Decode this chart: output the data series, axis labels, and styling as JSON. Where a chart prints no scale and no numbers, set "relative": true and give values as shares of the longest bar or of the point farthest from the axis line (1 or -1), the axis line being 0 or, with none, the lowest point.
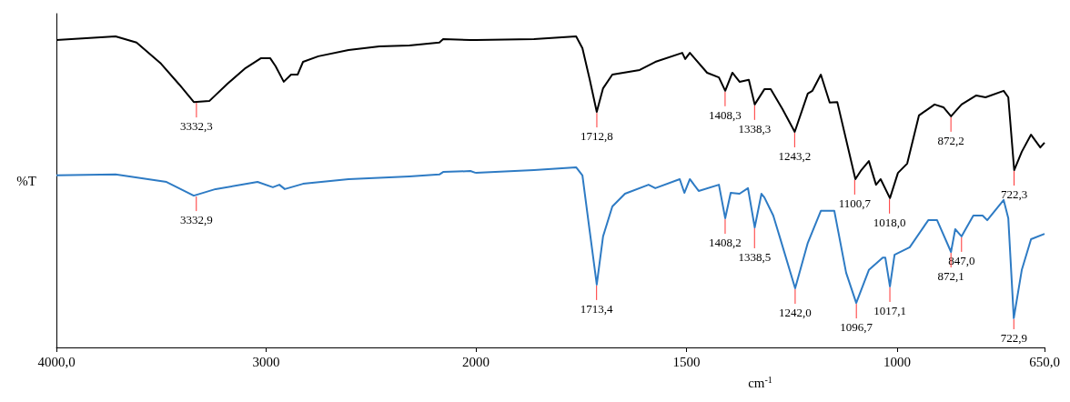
{
  "chart_data": [
    {
      "type": "line",
      "relative": true,
      "ylabel": "%T",
      "xlim": [
        4000,
        2000
      ],
      "xticks": [
        {
          "value": 4000,
          "label": "4000,0"
        },
        3000,
        2000
      ],
      "series": [
        {
          "color": "#000000",
          "x": [
            4000,
            3718,
            3618,
            3501,
            3414,
            3345,
            3271,
            3184,
            3098,
            3024,
            2981,
            2955,
            2916,
            2881,
            2850,
            2824,
            2751,
            2607,
            2460,
            2317,
            2174,
            2156,
            2026,
            2000
          ],
          "values": [
            0.988,
            1.0,
            0.98,
            0.912,
            0.845,
            0.789,
            0.792,
            0.848,
            0.898,
            0.93,
            0.93,
            0.904,
            0.854,
            0.877,
            0.877,
            0.918,
            0.936,
            0.956,
            0.968,
            0.971,
            0.98,
            0.991,
            0.988,
            0.988
          ]
        },
        {
          "color": "#2e7bc4",
          "x": [
            4000,
            3718,
            3475,
            3345,
            3241,
            3041,
            2968,
            2937,
            2911,
            2824,
            2607,
            2317,
            2174,
            2156,
            2026,
            2000
          ],
          "values": [
            0.553,
            0.556,
            0.532,
            0.488,
            0.509,
            0.532,
            0.515,
            0.523,
            0.509,
            0.526,
            0.541,
            0.55,
            0.556,
            0.564,
            0.567,
            0.561
          ]
        }
      ],
      "annotations": [
        {
          "text": "3332,3",
          "x": 3332.3,
          "y": 0.789
        },
        {
          "text": "3332,9",
          "x": 3332.9,
          "y": 0.488
        }
      ]
    },
    {
      "type": "line",
      "relative": true,
      "xlabel": "cm$^{-1}$",
      "xlim": [
        2000,
        650
      ],
      "tick_labels": "x",
      "xticks": [
        1500,
        1000,
        {
          "value": 650,
          "label": "650,0"
        }
      ],
      "series": [
        {
          "color": "#000000",
          "x": [
            2000,
            1862,
            1762,
            1747,
            1730,
            1713,
            1698,
            1676,
            1611,
            1574,
            1510,
            1503,
            1492,
            1451,
            1423,
            1408,
            1391,
            1374,
            1352,
            1338,
            1315,
            1300,
            1272,
            1243,
            1212,
            1201,
            1181,
            1160,
            1142,
            1099,
            1085,
            1067,
            1050,
            1039,
            1017,
            998,
            976,
            948,
            911,
            890,
            872,
            847,
            812,
            790,
            747,
            736,
            722,
            704,
            682,
            660,
            650
          ],
          "values": [
            0.988,
            0.991,
            1.0,
            0.962,
            0.863,
            0.757,
            0.833,
            0.877,
            0.892,
            0.918,
            0.947,
            0.927,
            0.947,
            0.883,
            0.868,
            0.825,
            0.883,
            0.854,
            0.86,
            0.781,
            0.83,
            0.83,
            0.766,
            0.693,
            0.816,
            0.825,
            0.877,
            0.787,
            0.789,
            0.541,
            0.57,
            0.599,
            0.523,
            0.541,
            0.48,
            0.561,
            0.591,
            0.746,
            0.781,
            0.772,
            0.743,
            0.781,
            0.81,
            0.804,
            0.825,
            0.804,
            0.57,
            0.629,
            0.684,
            0.643,
            0.658
          ]
        },
        {
          "color": "#2e7bc4",
          "x": [
            2000,
            1862,
            1762,
            1747,
            1730,
            1713,
            1698,
            1676,
            1646,
            1590,
            1574,
            1516,
            1505,
            1492,
            1471,
            1423,
            1408,
            1395,
            1374,
            1354,
            1338,
            1322,
            1315,
            1294,
            1279,
            1242,
            1212,
            1181,
            1149,
            1121,
            1097,
            1067,
            1034,
            1028,
            1017,
            1006,
            970,
            926,
            905,
            872,
            862,
            847,
            819,
            797,
            786,
            747,
            736,
            723,
            704,
            682,
            650
          ],
          "values": [
            0.561,
            0.57,
            0.579,
            0.553,
            0.377,
            0.202,
            0.357,
            0.453,
            0.494,
            0.523,
            0.512,
            0.541,
            0.497,
            0.541,
            0.503,
            0.523,
            0.415,
            0.497,
            0.494,
            0.512,
            0.386,
            0.494,
            0.482,
            0.424,
            0.357,
            0.19,
            0.336,
            0.439,
            0.439,
            0.24,
            0.143,
            0.249,
            0.289,
            0.289,
            0.196,
            0.298,
            0.322,
            0.409,
            0.409,
            0.307,
            0.38,
            0.357,
            0.424,
            0.424,
            0.409,
            0.474,
            0.415,
            0.094,
            0.249,
            0.348,
            0.365
          ]
        }
      ],
      "annotations": [
        {
          "text": "1712,8",
          "x": 1712.8,
          "y": 0.757
        },
        {
          "text": "1408,3",
          "x": 1408.3,
          "y": 0.825
        },
        {
          "text": "1338,3",
          "x": 1338.3,
          "y": 0.781
        },
        {
          "text": "1243,2",
          "x": 1243.2,
          "y": 0.693
        },
        {
          "text": "1100,7",
          "x": 1100.7,
          "y": 0.541
        },
        {
          "text": "1018,0",
          "x": 1018.0,
          "y": 0.48
        },
        {
          "text": "872,2",
          "x": 872.2,
          "y": 0.743
        },
        {
          "text": "722,3",
          "x": 722.3,
          "y": 0.57
        },
        {
          "text": "1713,4",
          "x": 1713.4,
          "y": 0.202
        },
        {
          "text": "1408,2",
          "x": 1408.2,
          "y": 0.415
        },
        {
          "text": "1338,5",
          "x": 1338.5,
          "y": 0.386
        },
        {
          "text": "1242,0",
          "x": 1242.0,
          "y": 0.19
        },
        {
          "text": "1096,7",
          "x": 1096.7,
          "y": 0.143
        },
        {
          "text": "1017,1",
          "x": 1017.1,
          "y": 0.196
        },
        {
          "text": "847,0",
          "x": 847.0,
          "y": 0.357
        },
        {
          "text": "872,1",
          "x": 872.1,
          "y": 0.307
        },
        {
          "text": "722,9",
          "x": 722.9,
          "y": 0.094
        }
      ]
    }
  ]
}
